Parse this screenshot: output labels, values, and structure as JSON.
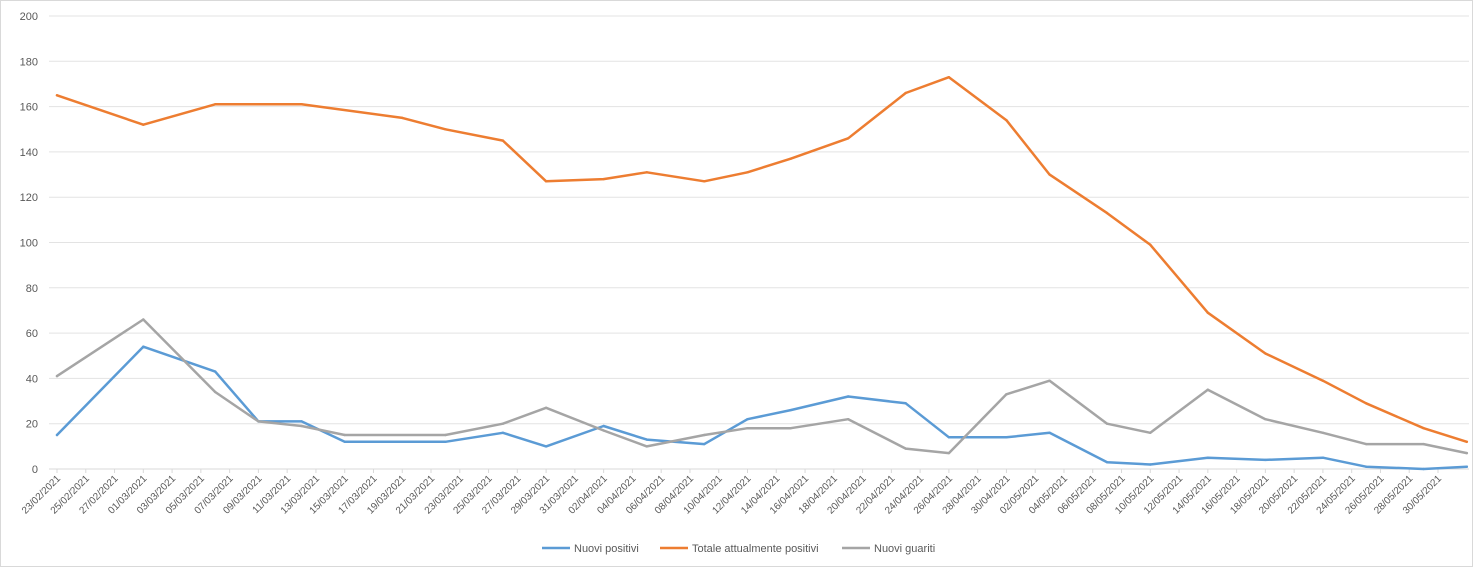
{
  "chart_data": {
    "type": "line",
    "title": "",
    "xlabel": "",
    "ylabel": "",
    "ylim": [
      0,
      200
    ],
    "yticks": [
      0,
      20,
      40,
      60,
      80,
      100,
      120,
      140,
      160,
      180,
      200
    ],
    "x_tick_labels": [
      "23/02/2021",
      "25/02/2021",
      "27/02/2021",
      "01/03/2021",
      "03/03/2021",
      "05/03/2021",
      "07/03/2021",
      "09/03/2021",
      "11/03/2021",
      "13/03/2021",
      "15/03/2021",
      "17/03/2021",
      "19/03/2021",
      "21/03/2021",
      "23/03/2021",
      "25/03/2021",
      "27/03/2021",
      "29/03/2021",
      "31/03/2021",
      "02/04/2021",
      "04/04/2021",
      "06/04/2021",
      "08/04/2021",
      "10/04/2021",
      "12/04/2021",
      "14/04/2021",
      "16/04/2021",
      "18/04/2021",
      "20/04/2021",
      "22/04/2021",
      "24/04/2021",
      "26/04/2021",
      "28/04/2021",
      "30/04/2021",
      "02/05/2021",
      "04/05/2021",
      "06/05/2021",
      "08/05/2021",
      "10/05/2021",
      "12/05/2021",
      "14/05/2021",
      "16/05/2021",
      "18/05/2021",
      "20/05/2021",
      "22/05/2021",
      "24/05/2021",
      "26/05/2021",
      "28/05/2021",
      "30/05/2021"
    ],
    "grid": true,
    "legend_position": "bottom",
    "series": [
      {
        "name": "Nuovi positivi",
        "color": "#5b9bd5",
        "points": [
          [
            "23/02/2021",
            15
          ],
          [
            "01/03/2021",
            54
          ],
          [
            "06/03/2021",
            43
          ],
          [
            "09/03/2021",
            21
          ],
          [
            "12/03/2021",
            21
          ],
          [
            "15/03/2021",
            12
          ],
          [
            "22/03/2021",
            12
          ],
          [
            "26/03/2021",
            16
          ],
          [
            "29/03/2021",
            10
          ],
          [
            "02/04/2021",
            19
          ],
          [
            "05/04/2021",
            13
          ],
          [
            "09/04/2021",
            11
          ],
          [
            "12/04/2021",
            22
          ],
          [
            "15/04/2021",
            26
          ],
          [
            "19/04/2021",
            32
          ],
          [
            "23/04/2021",
            29
          ],
          [
            "26/04/2021",
            14
          ],
          [
            "30/04/2021",
            14
          ],
          [
            "03/05/2021",
            16
          ],
          [
            "07/05/2021",
            3
          ],
          [
            "10/05/2021",
            2
          ],
          [
            "14/05/2021",
            5
          ],
          [
            "18/05/2021",
            4
          ],
          [
            "22/05/2021",
            5
          ],
          [
            "25/05/2021",
            1
          ],
          [
            "29/05/2021",
            0
          ],
          [
            "01/06/2021",
            1
          ]
        ]
      },
      {
        "name": "Totale attualmente positivi",
        "color": "#ed7d31",
        "points": [
          [
            "23/02/2021",
            165
          ],
          [
            "01/03/2021",
            152
          ],
          [
            "06/03/2021",
            161
          ],
          [
            "09/03/2021",
            161
          ],
          [
            "12/03/2021",
            161
          ],
          [
            "19/03/2021",
            155
          ],
          [
            "22/03/2021",
            150
          ],
          [
            "26/03/2021",
            145
          ],
          [
            "29/03/2021",
            127
          ],
          [
            "02/04/2021",
            128
          ],
          [
            "05/04/2021",
            131
          ],
          [
            "09/04/2021",
            127
          ],
          [
            "12/04/2021",
            131
          ],
          [
            "15/04/2021",
            137
          ],
          [
            "19/04/2021",
            146
          ],
          [
            "23/04/2021",
            166
          ],
          [
            "26/04/2021",
            173
          ],
          [
            "30/04/2021",
            154
          ],
          [
            "03/05/2021",
            130
          ],
          [
            "07/05/2021",
            113
          ],
          [
            "10/05/2021",
            99
          ],
          [
            "14/05/2021",
            69
          ],
          [
            "18/05/2021",
            51
          ],
          [
            "22/05/2021",
            39
          ],
          [
            "25/05/2021",
            29
          ],
          [
            "29/05/2021",
            18
          ],
          [
            "01/06/2021",
            12
          ]
        ]
      },
      {
        "name": "Nuovi guariti",
        "color": "#a5a5a5",
        "points": [
          [
            "23/02/2021",
            41
          ],
          [
            "01/03/2021",
            66
          ],
          [
            "06/03/2021",
            34
          ],
          [
            "09/03/2021",
            21
          ],
          [
            "12/03/2021",
            19
          ],
          [
            "15/03/2021",
            15
          ],
          [
            "22/03/2021",
            15
          ],
          [
            "26/03/2021",
            20
          ],
          [
            "29/03/2021",
            27
          ],
          [
            "02/04/2021",
            17
          ],
          [
            "05/04/2021",
            10
          ],
          [
            "09/04/2021",
            15
          ],
          [
            "12/04/2021",
            18
          ],
          [
            "15/04/2021",
            18
          ],
          [
            "19/04/2021",
            22
          ],
          [
            "23/04/2021",
            9
          ],
          [
            "26/04/2021",
            7
          ],
          [
            "30/04/2021",
            33
          ],
          [
            "03/05/2021",
            39
          ],
          [
            "07/05/2021",
            20
          ],
          [
            "10/05/2021",
            16
          ],
          [
            "14/05/2021",
            35
          ],
          [
            "18/05/2021",
            22
          ],
          [
            "22/05/2021",
            16
          ],
          [
            "25/05/2021",
            11
          ],
          [
            "29/05/2021",
            11
          ],
          [
            "01/06/2021",
            7
          ]
        ]
      }
    ]
  }
}
